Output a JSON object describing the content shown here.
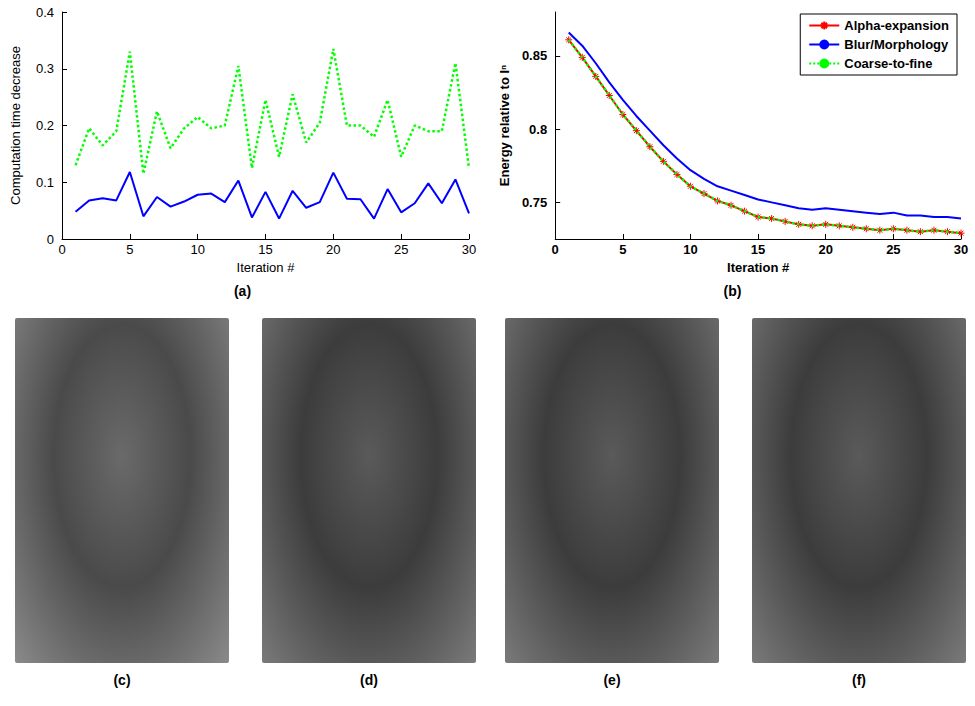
{
  "chart_data": [
    {
      "type": "line",
      "title": "(a)",
      "xlabel": "Iteration #",
      "ylabel": "Computation time decrease",
      "x": [
        1,
        2,
        3,
        4,
        5,
        6,
        7,
        8,
        9,
        10,
        11,
        12,
        13,
        14,
        15,
        16,
        17,
        18,
        19,
        20,
        21,
        22,
        23,
        24,
        25,
        26,
        27,
        28,
        29,
        30
      ],
      "xlim": [
        0,
        30
      ],
      "xticks": [
        0,
        5,
        10,
        15,
        20,
        25,
        30
      ],
      "ylim": [
        0,
        0.4
      ],
      "yticks": [
        0,
        0.1,
        0.2,
        0.3,
        0.4
      ],
      "grid": false,
      "series": [
        {
          "color": "#00ff00",
          "line_style": "dotted",
          "marker": "none",
          "values": [
            0.13,
            0.195,
            0.165,
            0.19,
            0.33,
            0.115,
            0.225,
            0.16,
            0.195,
            0.215,
            0.195,
            0.2,
            0.305,
            0.125,
            0.245,
            0.145,
            0.255,
            0.17,
            0.205,
            0.335,
            0.2,
            0.2,
            0.18,
            0.245,
            0.145,
            0.2,
            0.19,
            0.19,
            0.31,
            0.125
          ]
        },
        {
          "color": "#0000ff",
          "line_style": "solid",
          "marker": "none",
          "values": [
            0.048,
            0.068,
            0.072,
            0.068,
            0.118,
            0.04,
            0.074,
            0.057,
            0.066,
            0.078,
            0.08,
            0.065,
            0.103,
            0.038,
            0.083,
            0.036,
            0.085,
            0.055,
            0.065,
            0.117,
            0.071,
            0.07,
            0.036,
            0.088,
            0.047,
            0.063,
            0.098,
            0.063,
            0.105,
            0.045
          ]
        }
      ]
    },
    {
      "type": "line",
      "title": "(b)",
      "xlabel": "Iteration #",
      "ylabel": "Energy relative to Iⁿ",
      "x": [
        1,
        2,
        3,
        4,
        5,
        6,
        7,
        8,
        9,
        10,
        11,
        12,
        13,
        14,
        15,
        16,
        17,
        18,
        19,
        20,
        21,
        22,
        23,
        24,
        25,
        26,
        27,
        28,
        29,
        30
      ],
      "xlim": [
        0,
        30
      ],
      "xticks": [
        0,
        5,
        10,
        15,
        20,
        25,
        30
      ],
      "ylim": [
        0.725,
        0.88
      ],
      "yticks": [
        0.75,
        0.8,
        0.85
      ],
      "grid": false,
      "legend": "top-right",
      "series": [
        {
          "name": "Alpha-expansion",
          "color": "#ff0000",
          "line_style": "solid",
          "marker": "asterisk",
          "values": [
            0.861,
            0.849,
            0.836,
            0.823,
            0.81,
            0.799,
            0.788,
            0.778,
            0.769,
            0.761,
            0.756,
            0.751,
            0.748,
            0.744,
            0.74,
            0.739,
            0.737,
            0.735,
            0.734,
            0.735,
            0.734,
            0.733,
            0.732,
            0.731,
            0.732,
            0.731,
            0.73,
            0.731,
            0.73,
            0.729
          ]
        },
        {
          "name": "Blur/Morphology",
          "color": "#0000ff",
          "line_style": "solid",
          "marker": "none",
          "values": [
            0.866,
            0.857,
            0.845,
            0.832,
            0.82,
            0.809,
            0.799,
            0.789,
            0.78,
            0.772,
            0.766,
            0.761,
            0.758,
            0.755,
            0.752,
            0.75,
            0.748,
            0.746,
            0.745,
            0.746,
            0.745,
            0.744,
            0.743,
            0.742,
            0.743,
            0.741,
            0.741,
            0.74,
            0.74,
            0.739
          ]
        },
        {
          "name": "Coarse-to-fine",
          "color": "#00ff00",
          "line_style": "dotted",
          "marker": "none",
          "values": [
            0.861,
            0.849,
            0.836,
            0.823,
            0.81,
            0.799,
            0.788,
            0.778,
            0.769,
            0.761,
            0.756,
            0.751,
            0.748,
            0.744,
            0.74,
            0.739,
            0.737,
            0.735,
            0.734,
            0.735,
            0.734,
            0.733,
            0.732,
            0.731,
            0.732,
            0.731,
            0.73,
            0.731,
            0.73,
            0.729
          ]
        }
      ]
    }
  ],
  "panels": [
    "(c)",
    "(d)",
    "(e)",
    "(f)"
  ]
}
